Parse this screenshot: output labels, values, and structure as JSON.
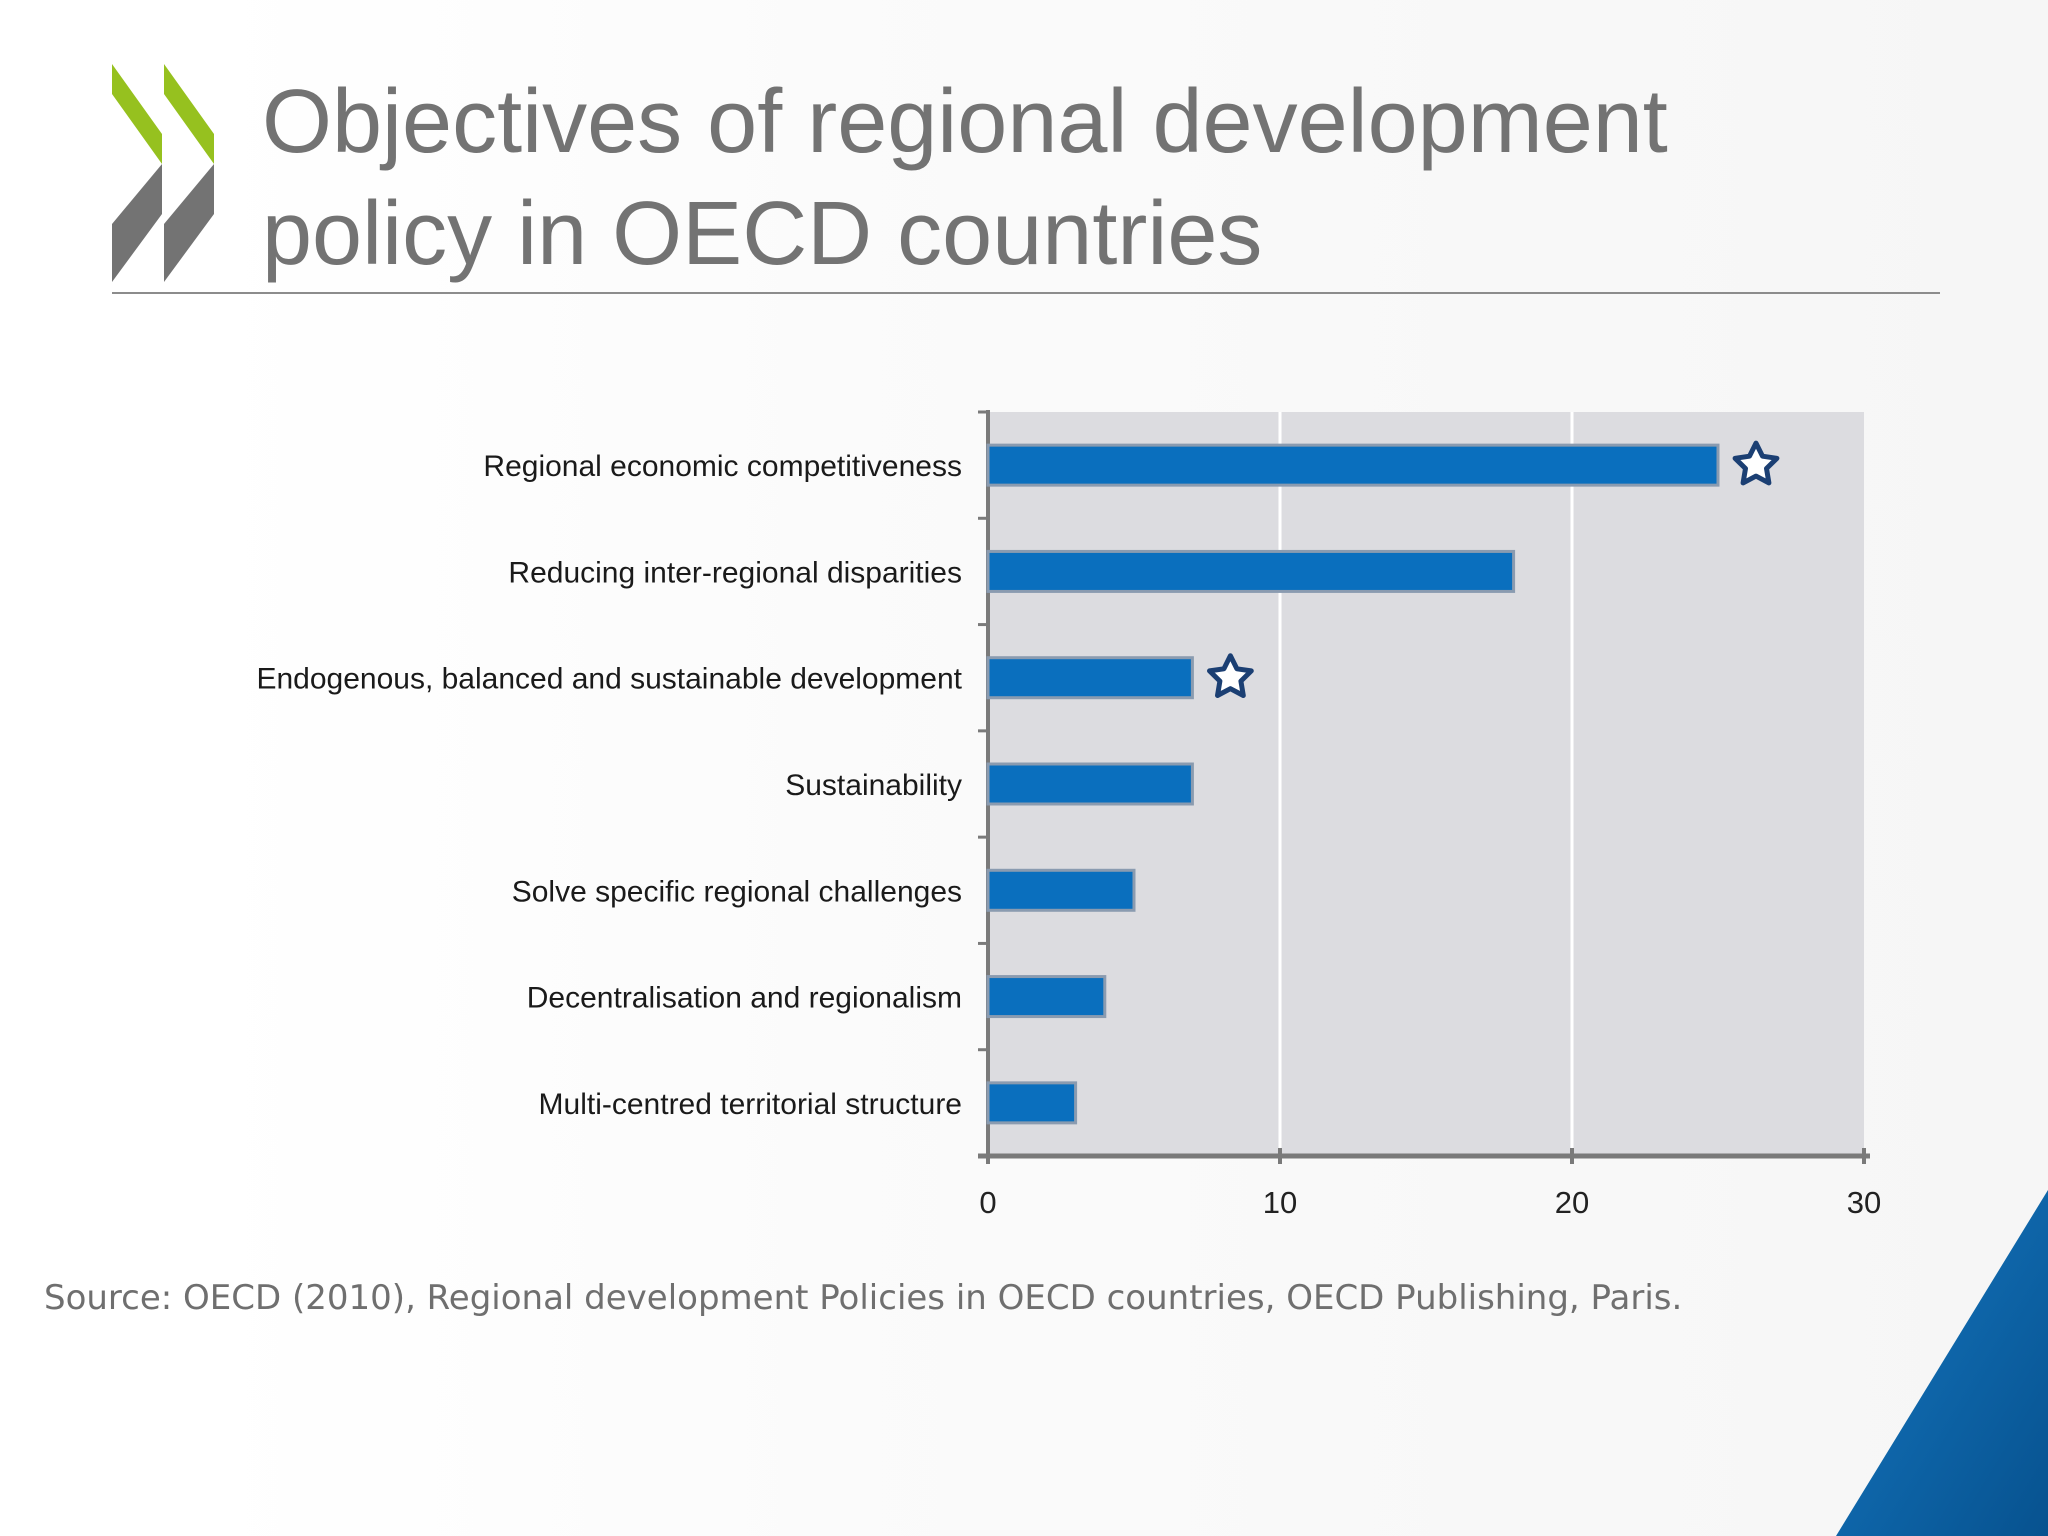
{
  "slide": {
    "title_lines": [
      "Objectives of regional development",
      "policy in OECD countries"
    ],
    "source": "Source: OECD (2010), Regional development Policies in OECD countries, OECD Publishing, Paris.",
    "colors": {
      "bar": "#0a6fbe",
      "bar_edge": "#8a9bb0",
      "plot_bg": "#dcdce0",
      "star": "#1b3f73",
      "logo_green": "#96c11f",
      "logo_grey": "#737373",
      "corner_blue": "#0d5fa0"
    },
    "icons": [
      "oecd-chevron-logo-icon",
      "star-icon",
      "corner-triangle-decoration"
    ]
  },
  "chart_data": {
    "type": "bar",
    "orientation": "horizontal",
    "categories": [
      "Regional economic competitiveness",
      "Reducing inter-regional disparities",
      "Endogenous, balanced and sustainable development",
      "Sustainability",
      "Solve specific regional challenges",
      "Decentralisation and regionalism",
      "Multi-centred territorial structure"
    ],
    "values": [
      25,
      18,
      7,
      7,
      5,
      4,
      3
    ],
    "starred": [
      true,
      false,
      true,
      false,
      false,
      false,
      false
    ],
    "xlim": [
      0,
      30
    ],
    "xticks": [
      0,
      10,
      20,
      30
    ],
    "xtick_labels": [
      "0",
      "10",
      "20",
      "30"
    ],
    "grid": "vertical",
    "legend": "none",
    "title": "",
    "xlabel": "",
    "ylabel": ""
  }
}
